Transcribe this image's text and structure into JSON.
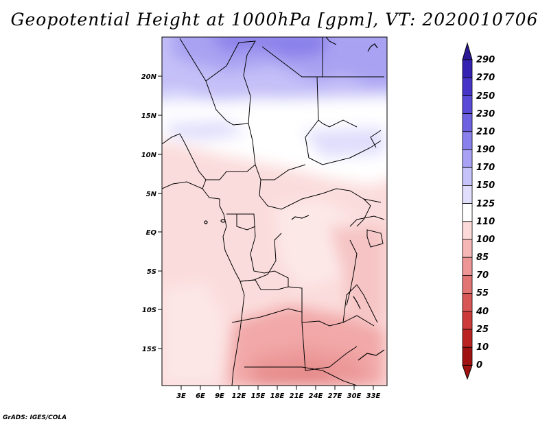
{
  "title": "Geopotential Height at 1000hPa [gpm], VT: 2020010706",
  "credit": "GrADS: IGES/COLA",
  "lat_labels": [
    "20N",
    "15N",
    "10N",
    "5N",
    "EQ",
    "5S",
    "10S",
    "15S"
  ],
  "lon_labels": [
    "3E",
    "6E",
    "9E",
    "12E",
    "15E",
    "18E",
    "21E",
    "24E",
    "27E",
    "30E",
    "33E"
  ],
  "colorbar": {
    "labels": [
      "290",
      "270",
      "250",
      "230",
      "210",
      "190",
      "170",
      "150",
      "125",
      "110",
      "100",
      "85",
      "70",
      "55",
      "40",
      "25",
      "10",
      "0"
    ],
    "colors": [
      "#2a1896",
      "#3522b2",
      "#4634c8",
      "#5a4ad8",
      "#6e62e2",
      "#8a80ec",
      "#a9a2f4",
      "#c6c2fa",
      "#e0defc",
      "#ffffff",
      "#fddada",
      "#f6b6b6",
      "#ee9595",
      "#e37474",
      "#d85656",
      "#cc3a3a",
      "#bb2323",
      "#a01212"
    ]
  },
  "map_data": {
    "variable": "Geopotential Height",
    "level": "1000hPa",
    "units": "gpm",
    "valid_time": "2020010706",
    "lon_range": [
      0,
      35
    ],
    "lat_range": [
      -20,
      25
    ]
  }
}
